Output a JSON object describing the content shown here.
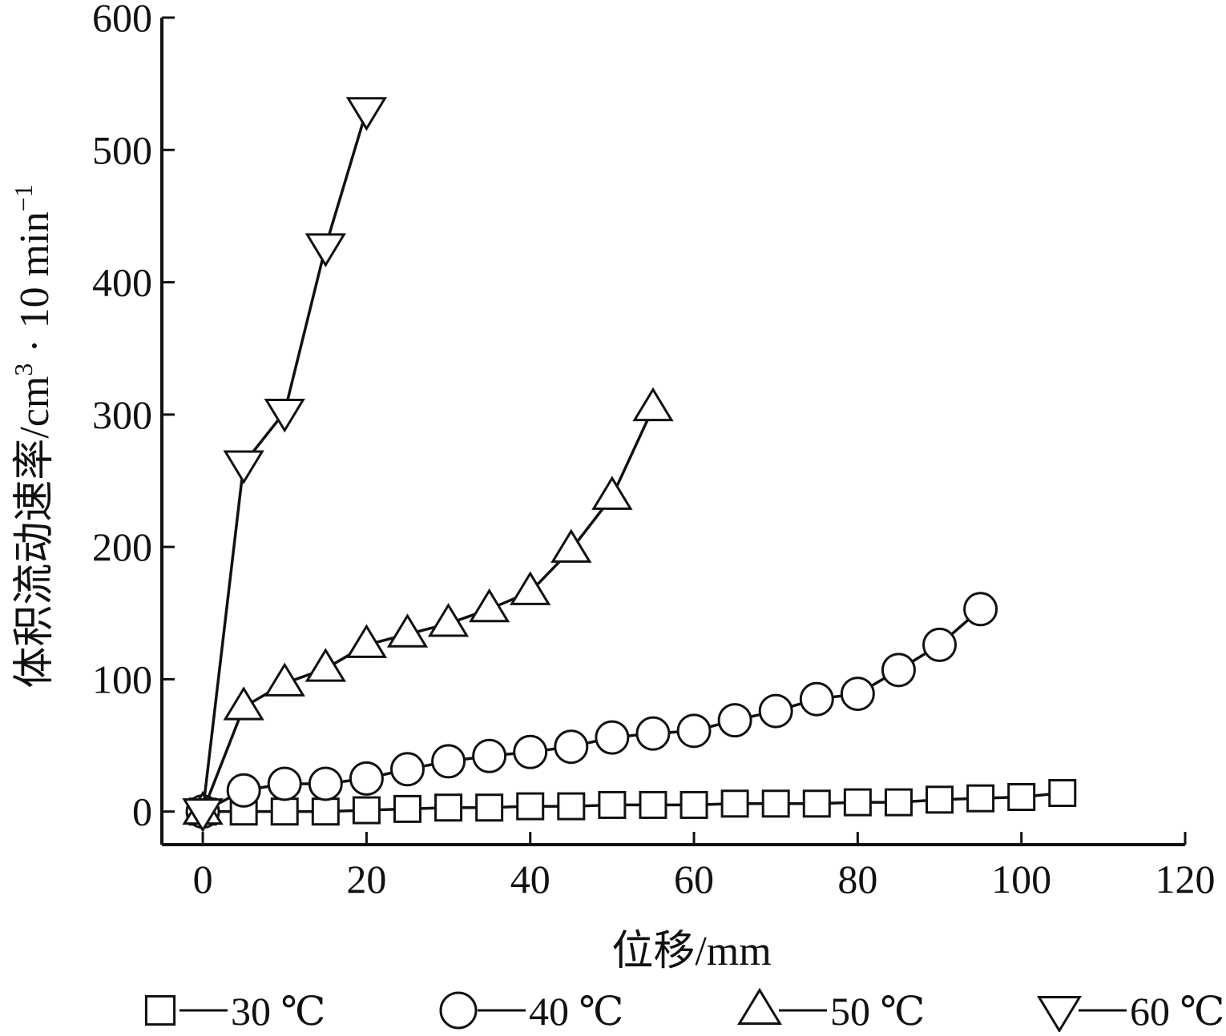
{
  "chart_data": {
    "type": "line",
    "title": "",
    "xlabel": "位移/mm",
    "ylabel": "体积流动速率/cm³ · 10 min⁻¹",
    "ylabel_parts": {
      "main": "体积流动速率/cm",
      "sup1": "3",
      "mid": " · 10 min",
      "sup2": "−1"
    },
    "xlim": [
      -5,
      120
    ],
    "ylim": [
      -25,
      600
    ],
    "xticks": [
      0,
      20,
      40,
      60,
      80,
      100,
      120
    ],
    "yticks": [
      0,
      100,
      200,
      300,
      400,
      500,
      600
    ],
    "grid": false,
    "legend_position": "bottom",
    "line_color": "#111111",
    "series": [
      {
        "name": "30 ℃",
        "marker": "square",
        "x": [
          0,
          5,
          10,
          15,
          20,
          25,
          30,
          35,
          40,
          45,
          50,
          55,
          60,
          65,
          70,
          75,
          80,
          85,
          90,
          95,
          100,
          105
        ],
        "y": [
          0,
          0,
          0,
          0,
          1,
          2,
          3,
          3,
          4,
          4,
          5,
          5,
          5,
          6,
          6,
          6,
          7,
          7,
          9,
          10,
          11,
          14
        ]
      },
      {
        "name": "40 ℃",
        "marker": "circle",
        "x": [
          0,
          5,
          10,
          15,
          20,
          25,
          30,
          35,
          40,
          45,
          50,
          55,
          60,
          65,
          70,
          75,
          80,
          85,
          90,
          95
        ],
        "y": [
          0,
          16,
          21,
          21,
          25,
          32,
          38,
          42,
          45,
          49,
          56,
          59,
          61,
          69,
          76,
          85,
          89,
          107,
          126,
          153
        ]
      },
      {
        "name": "50 ℃",
        "marker": "triangle-up",
        "x": [
          0,
          5,
          10,
          15,
          20,
          25,
          30,
          35,
          40,
          45,
          50,
          55
        ],
        "y": [
          0,
          79,
          97,
          108,
          126,
          134,
          142,
          153,
          166,
          198,
          238,
          305
        ]
      },
      {
        "name": "60 ℃",
        "marker": "triangle-down",
        "x": [
          0,
          5,
          10,
          15,
          20
        ],
        "y": [
          0,
          263,
          302,
          427,
          530
        ]
      }
    ]
  }
}
